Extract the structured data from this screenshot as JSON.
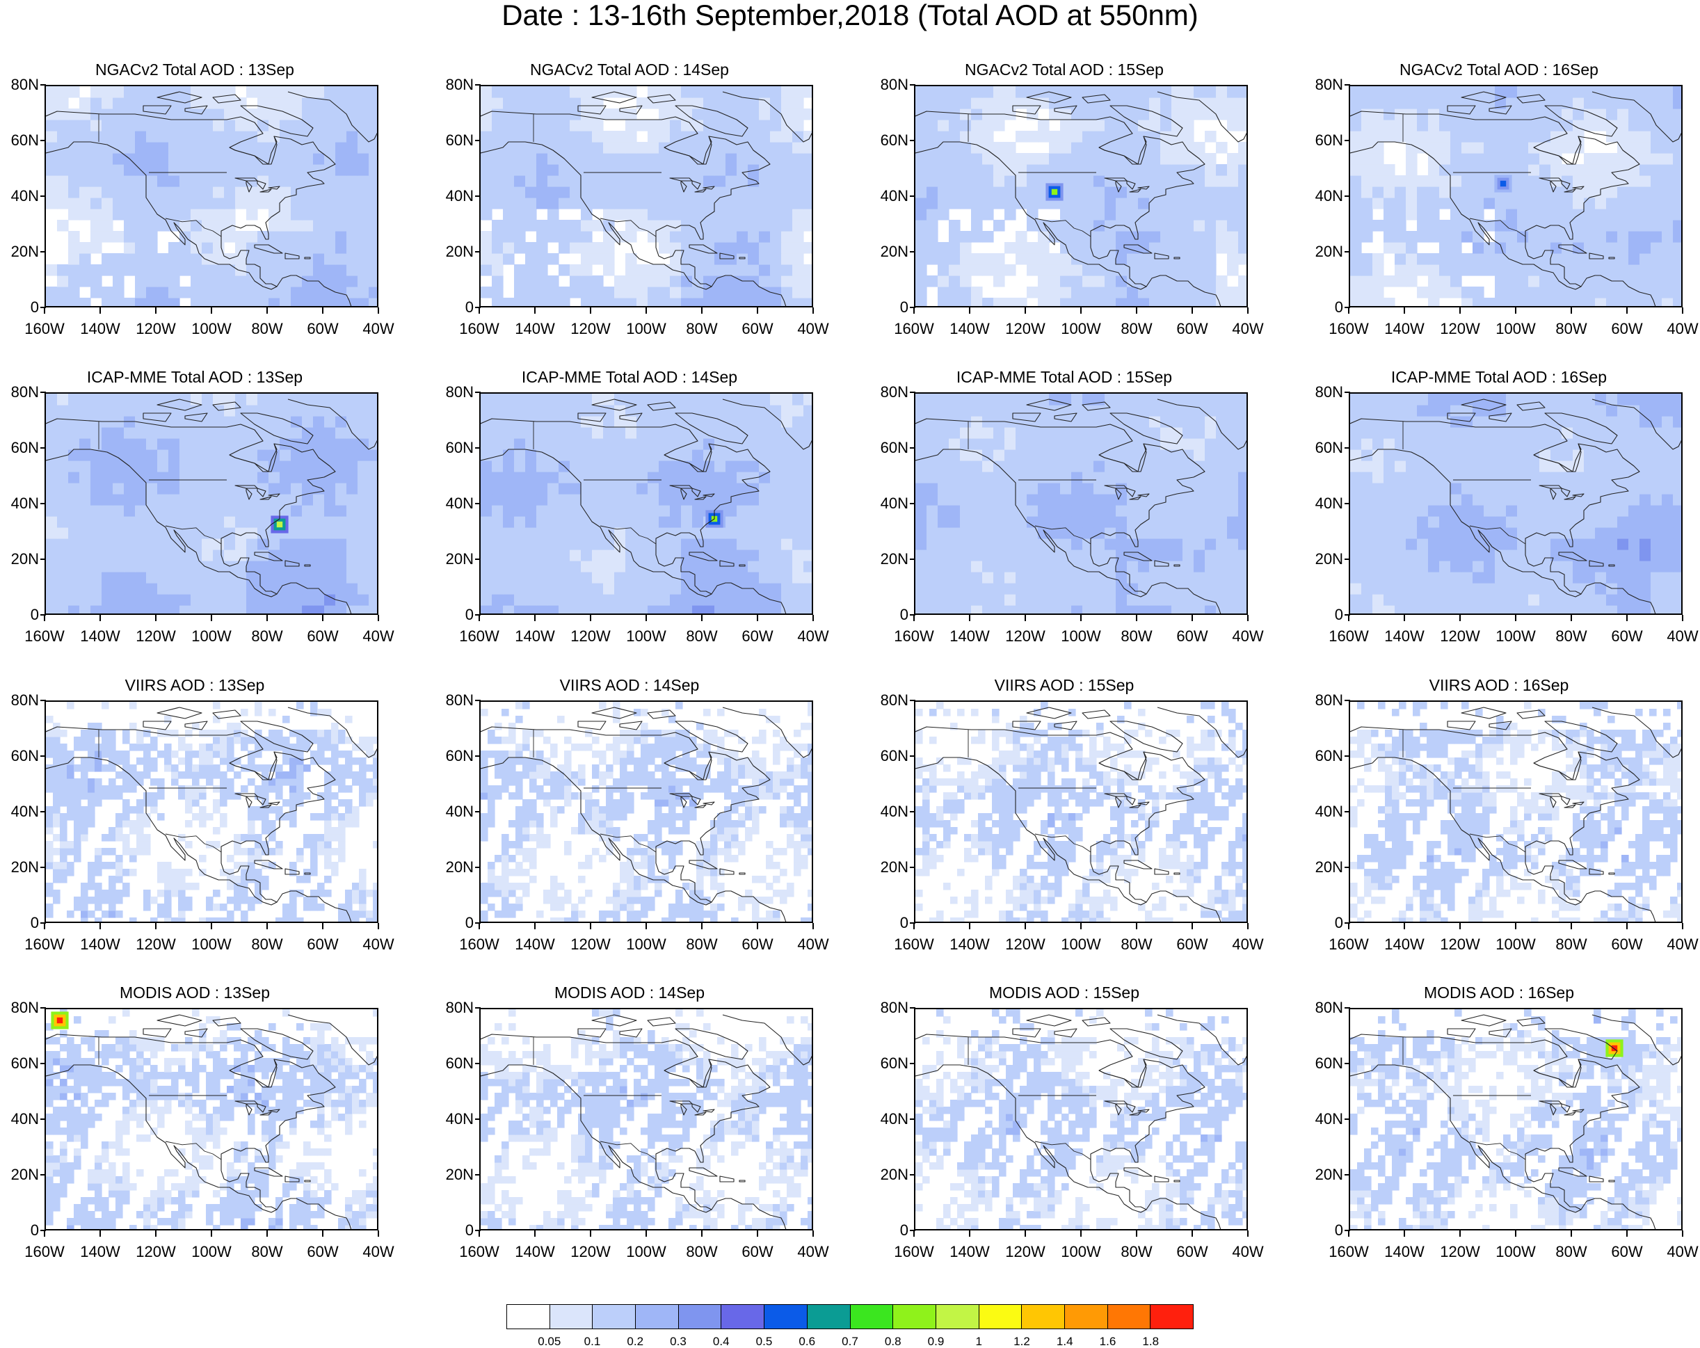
{
  "title": "Date : 13-16th September,2018 (Total AOD at 550nm)",
  "lat_labels": [
    "80N",
    "60N",
    "40N",
    "20N",
    "0"
  ],
  "lon_labels": [
    "160W",
    "140W",
    "120W",
    "100W",
    "80W",
    "60W",
    "40W"
  ],
  "map_extent": {
    "lon": [
      -160,
      -40
    ],
    "lat": [
      0,
      80
    ]
  },
  "rows": [
    {
      "titles": [
        "NGACv2 Total AOD : 13Sep",
        "NGACv2 Total AOD : 14Sep",
        "NGACv2 Total AOD : 15Sep",
        "NGACv2 Total AOD : 16Sep"
      ]
    },
    {
      "titles": [
        "ICAP-MME Total AOD : 13Sep",
        "ICAP-MME Total AOD : 14Sep",
        "ICAP-MME Total AOD : 15Sep",
        "ICAP-MME Total AOD : 16Sep"
      ]
    },
    {
      "titles": [
        "VIIRS AOD : 13Sep",
        "VIIRS AOD : 14Sep",
        "VIIRS AOD : 15Sep",
        "VIIRS AOD : 16Sep"
      ]
    },
    {
      "titles": [
        "MODIS AOD : 13Sep",
        "MODIS AOD : 14Sep",
        "MODIS AOD : 15Sep",
        "MODIS AOD : 16Sep"
      ]
    }
  ],
  "colorbar": {
    "labels": [
      "0.05",
      "0.1",
      "0.2",
      "0.3",
      "0.4",
      "0.5",
      "0.6",
      "0.7",
      "0.8",
      "0.9",
      "1",
      "1.2",
      "1.4",
      "1.6",
      "1.8"
    ],
    "colors": [
      "#ffffff",
      "#dbe5fb",
      "#bccffa",
      "#9fb6f7",
      "#7f95ef",
      "#6868e8",
      "#0b5be8",
      "#0b9c94",
      "#3be61f",
      "#8ff21b",
      "#c2f545",
      "#fbfb12",
      "#ffc603",
      "#ff9a05",
      "#ff7704",
      "#ff200d"
    ]
  },
  "chart_data": {
    "type": "heatmap",
    "title": "Date : 13-16th September,2018 (Total AOD at 550nm)",
    "x_range": [
      -160,
      -40
    ],
    "y_range": [
      0,
      80
    ],
    "contour_levels": [
      0.05,
      0.1,
      0.2,
      0.3,
      0.4,
      0.5,
      0.6,
      0.7,
      0.8,
      0.9,
      1,
      1.2,
      1.4,
      1.6,
      1.8
    ],
    "highlights": [
      {
        "panel": "NGACv2 Total AOD : 15Sep",
        "lon": -110,
        "lat": 42,
        "aod": 0.8
      },
      {
        "panel": "NGACv2 Total AOD : 16Sep",
        "lon": -105,
        "lat": 45,
        "aod": 0.5
      },
      {
        "panel": "ICAP-MME Total AOD : 13Sep",
        "lon": -76,
        "lat": 33,
        "aod": 0.9
      },
      {
        "panel": "ICAP-MME Total AOD : 14Sep",
        "lon": -76,
        "lat": 35,
        "aod": 0.8
      },
      {
        "panel": "MODIS AOD : 13Sep",
        "lon": -155,
        "lat": 76,
        "aod": 1.8
      },
      {
        "panel": "MODIS AOD : 16Sep",
        "lon": -65,
        "lat": 66,
        "aod": 1.8
      }
    ]
  }
}
